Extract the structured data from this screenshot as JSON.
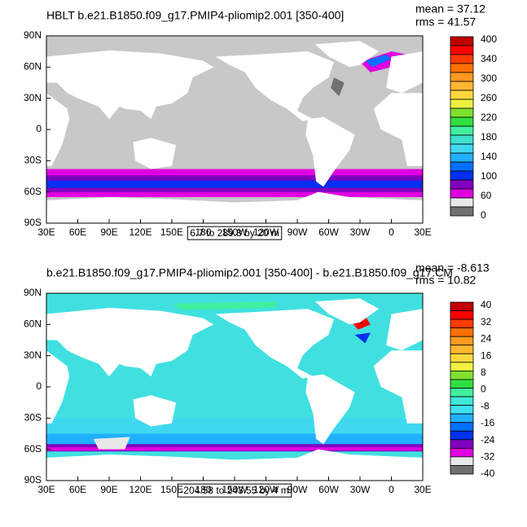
{
  "panels": [
    {
      "title": "HBLT b.e21.B1850.f09_g17.PMIP4-pliomip2.001 [350-400]",
      "stats": [
        "mean = 37.12",
        "rms = 41.57"
      ],
      "lat_labels": [
        "90N",
        "60N",
        "30N",
        "0",
        "30S",
        "60S",
        "90S"
      ],
      "lon_labels": [
        "30E",
        "60E",
        "90E",
        "120E",
        "150E",
        "180",
        "150W",
        "120W",
        "90W",
        "60W",
        "30W",
        "0",
        "30E"
      ],
      "range_label": "6.7 to 289.8 by 20 m",
      "colorbar": {
        "labels": [
          "400",
          "340",
          "300",
          "260",
          "220",
          "180",
          "140",
          "100",
          "60",
          "0"
        ],
        "colors": [
          "#c00000",
          "#ff0000",
          "#ff3a00",
          "#ff7000",
          "#ff9a20",
          "#ffb830",
          "#ffd840",
          "#f0f040",
          "#80e030",
          "#30e040",
          "#40f0a0",
          "#40e0d0",
          "#40d8f0",
          "#20b0ff",
          "#0070ff",
          "#0030f0",
          "#8000c0",
          "#e000e0",
          "#e8e8e8",
          "#707070"
        ]
      }
    },
    {
      "title": "b.e21.B1850.f09_g17.PMIP4-pliomip2.001 [350-400] - b.e21.B1850.f09_g17.CM",
      "stats": [
        "mean = -8.613",
        "rms = 10.82"
      ],
      "lat_labels": [
        "90N",
        "60N",
        "30N",
        "0",
        "30S",
        "60S",
        "90S"
      ],
      "lon_labels": [
        "30E",
        "60E",
        "90E",
        "120E",
        "150E",
        "180",
        "150W",
        "120W",
        "90W",
        "60W",
        "30W",
        "0",
        "30E"
      ],
      "range_label": "-204.58 to 243.55 by 4 m",
      "colorbar": {
        "labels": [
          "40",
          "32",
          "24",
          "16",
          "8",
          "0",
          "-8",
          "-16",
          "-24",
          "-32",
          "-40"
        ],
        "colors": [
          "#c00000",
          "#ff0000",
          "#ff3a00",
          "#ff7000",
          "#ff9a20",
          "#ffb830",
          "#ffd840",
          "#f0f040",
          "#80e030",
          "#30e040",
          "#40f0a0",
          "#40e8d8",
          "#40e0f0",
          "#20b0ff",
          "#0070ff",
          "#0030f0",
          "#8000c0",
          "#e000e0",
          "#e8e8e8",
          "#707070"
        ]
      }
    }
  ]
}
